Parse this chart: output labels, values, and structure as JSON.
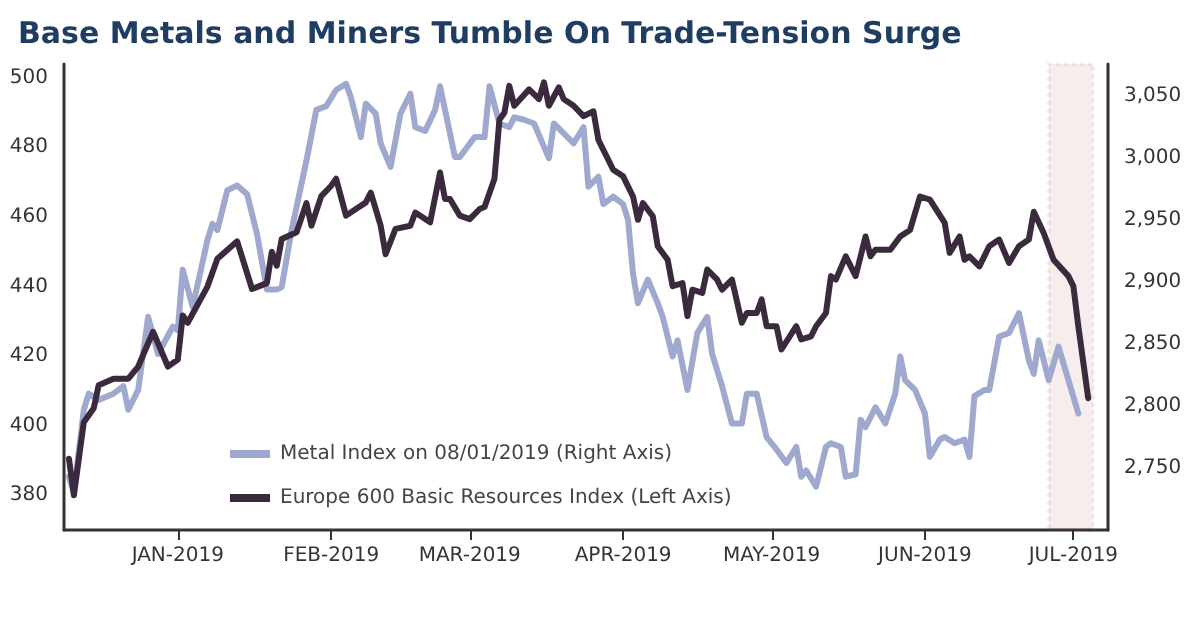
{
  "chart_data": {
    "type": "line",
    "title": "Base Metals and Miners Tumble On Trade-Tension Surge",
    "xlim": [
      "2018-12-09",
      "2019-07-08"
    ],
    "xticks": [
      {
        "value": "2019-01-01",
        "label": "JAN-2019"
      },
      {
        "value": "2019-02-01",
        "label": "FEB-2019"
      },
      {
        "value": "2019-03-01",
        "label": "MAR-2019"
      },
      {
        "value": "2019-04-01",
        "label": "APR-2019"
      },
      {
        "value": "2019-05-01",
        "label": "MAY-2019"
      },
      {
        "value": "2019-06-01",
        "label": "JUN-2019"
      },
      {
        "value": "2019-07-01",
        "label": "JUL-2019"
      }
    ],
    "ylim": [
      370,
      504
    ],
    "yticks": [
      380,
      400,
      420,
      440,
      460,
      480,
      500
    ],
    "y2lim": [
      2700,
      3076
    ],
    "y2ticks": [
      {
        "value": 2750,
        "label": "2,750"
      },
      {
        "value": 2800,
        "label": "2,800"
      },
      {
        "value": 2850,
        "label": "2,850"
      },
      {
        "value": 2900,
        "label": "2,900"
      },
      {
        "value": 2950,
        "label": "2,950"
      },
      {
        "value": 3000,
        "label": "3,000"
      },
      {
        "value": 3050,
        "label": "3,050"
      }
    ],
    "grid": false,
    "legend": "bottom",
    "bands": [
      {
        "axis": "x",
        "from": "2019-06-26",
        "to": "2019-07-05",
        "color": "#8b1a1a"
      }
    ],
    "series": [
      {
        "name": "Metal Index on 08/01/2019 (Right Axis)",
        "color": "#9fa8cf",
        "axis": "y2",
        "x": [
          "2018-12-10",
          "2018-12-11",
          "2018-12-13",
          "2018-12-14",
          "2018-12-16",
          "2018-12-19",
          "2018-12-21",
          "2018-12-22",
          "2018-12-24",
          "2018-12-26",
          "2018-12-28",
          "2018-12-31",
          "2019-01-01",
          "2019-01-02",
          "2019-01-04",
          "2019-01-07",
          "2019-01-08",
          "2019-01-09",
          "2019-01-11",
          "2019-01-13",
          "2019-01-15",
          "2019-01-17",
          "2019-01-19",
          "2019-01-21",
          "2019-01-22",
          "2019-01-24",
          "2019-01-27",
          "2019-01-29",
          "2019-01-31",
          "2019-02-02",
          "2019-02-04",
          "2019-02-05",
          "2019-02-07",
          "2019-02-08",
          "2019-02-10",
          "2019-02-11",
          "2019-02-13",
          "2019-02-15",
          "2019-02-17",
          "2019-02-18",
          "2019-02-20",
          "2019-02-22",
          "2019-02-23",
          "2019-02-26",
          "2019-02-27",
          "2019-03-02",
          "2019-03-04",
          "2019-03-05",
          "2019-03-07",
          "2019-03-09",
          "2019-03-10",
          "2019-03-12",
          "2019-03-14",
          "2019-03-17",
          "2019-03-18",
          "2019-03-20",
          "2019-03-22",
          "2019-03-24",
          "2019-03-25",
          "2019-03-27",
          "2019-03-28",
          "2019-03-30",
          "2019-04-01",
          "2019-04-02",
          "2019-04-03",
          "2019-04-04",
          "2019-04-06",
          "2019-04-08",
          "2019-04-09",
          "2019-04-11",
          "2019-04-12",
          "2019-04-14",
          "2019-04-16",
          "2019-04-18",
          "2019-04-19",
          "2019-04-21",
          "2019-04-23",
          "2019-04-25",
          "2019-04-26",
          "2019-04-28",
          "2019-04-30",
          "2019-05-02",
          "2019-05-04",
          "2019-05-06",
          "2019-05-07",
          "2019-05-08",
          "2019-05-10",
          "2019-05-12",
          "2019-05-13",
          "2019-05-15",
          "2019-05-16",
          "2019-05-18",
          "2019-05-19",
          "2019-05-20",
          "2019-05-22",
          "2019-05-24",
          "2019-05-26",
          "2019-05-27",
          "2019-05-28",
          "2019-05-30",
          "2019-06-01",
          "2019-06-02",
          "2019-06-04",
          "2019-06-05",
          "2019-06-07",
          "2019-06-09",
          "2019-06-10",
          "2019-06-11",
          "2019-06-13",
          "2019-06-14",
          "2019-06-16",
          "2019-06-18",
          "2019-06-20",
          "2019-06-22",
          "2019-06-23",
          "2019-06-24",
          "2019-06-26",
          "2019-06-28",
          "2019-06-30",
          "2019-07-02"
        ],
        "values": [
          2743,
          2730,
          2797,
          2810,
          2805,
          2810,
          2816,
          2797,
          2813,
          2872,
          2842,
          2864,
          2861,
          2910,
          2880,
          2934,
          2947,
          2942,
          2974,
          2978,
          2971,
          2939,
          2894,
          2894,
          2896,
          2942,
          2998,
          3039,
          3042,
          3055,
          3060,
          3049,
          3017,
          3044,
          3036,
          3012,
          2993,
          3036,
          3052,
          3025,
          3022,
          3039,
          3058,
          3001,
          3001,
          3017,
          3017,
          3058,
          3028,
          3025,
          3033,
          3031,
          3028,
          3000,
          3028,
          3020,
          3012,
          3025,
          2977,
          2985,
          2963,
          2969,
          2963,
          2950,
          2907,
          2883,
          2902,
          2883,
          2872,
          2840,
          2853,
          2813,
          2859,
          2872,
          2842,
          2816,
          2786,
          2786,
          2810,
          2810,
          2775,
          2765,
          2754,
          2767,
          2743,
          2748,
          2735,
          2767,
          2770,
          2767,
          2743,
          2745,
          2789,
          2783,
          2799,
          2786,
          2810,
          2840,
          2821,
          2813,
          2794,
          2759,
          2773,
          2775,
          2770,
          2773,
          2759,
          2808,
          2813,
          2813,
          2856,
          2859,
          2875,
          2837,
          2826,
          2853,
          2821,
          2848,
          2821,
          2794
        ]
      },
      {
        "name": "Europe 600 Basic Resources Index (Left Axis)",
        "color": "#3b2a3d",
        "x": [
          "2018-12-10",
          "2018-12-11",
          "2018-12-13",
          "2018-12-15",
          "2018-12-16",
          "2018-12-19",
          "2018-12-22",
          "2018-12-24",
          "2018-12-27",
          "2018-12-30",
          "2019-01-01",
          "2019-01-02",
          "2019-01-03",
          "2019-01-07",
          "2019-01-09",
          "2019-01-13",
          "2019-01-16",
          "2019-01-19",
          "2019-01-20",
          "2019-01-21",
          "2019-01-22",
          "2019-01-25",
          "2019-01-27",
          "2019-01-28",
          "2019-01-30",
          "2019-02-01",
          "2019-02-02",
          "2019-02-04",
          "2019-02-06",
          "2019-02-08",
          "2019-02-09",
          "2019-02-11",
          "2019-02-12",
          "2019-02-14",
          "2019-02-17",
          "2019-02-18",
          "2019-02-21",
          "2019-02-23",
          "2019-02-24",
          "2019-02-25",
          "2019-02-27",
          "2019-03-01",
          "2019-03-03",
          "2019-03-04",
          "2019-03-06",
          "2019-03-07",
          "2019-03-08",
          "2019-03-09",
          "2019-03-10",
          "2019-03-13",
          "2019-03-15",
          "2019-03-16",
          "2019-03-17",
          "2019-03-19",
          "2019-03-20",
          "2019-03-22",
          "2019-03-24",
          "2019-03-26",
          "2019-03-27",
          "2019-03-30",
          "2019-04-01",
          "2019-04-03",
          "2019-04-04",
          "2019-04-05",
          "2019-04-07",
          "2019-04-08",
          "2019-04-10",
          "2019-04-11",
          "2019-04-13",
          "2019-04-14",
          "2019-04-15",
          "2019-04-17",
          "2019-04-18",
          "2019-04-20",
          "2019-04-21",
          "2019-04-23",
          "2019-04-25",
          "2019-04-26",
          "2019-04-28",
          "2019-04-29",
          "2019-04-30",
          "2019-05-02",
          "2019-05-03",
          "2019-05-06",
          "2019-05-07",
          "2019-05-09",
          "2019-05-10",
          "2019-05-12",
          "2019-05-13",
          "2019-05-14",
          "2019-05-16",
          "2019-05-18",
          "2019-05-20",
          "2019-05-21",
          "2019-05-22",
          "2019-05-25",
          "2019-05-27",
          "2019-05-29",
          "2019-05-31",
          "2019-06-02",
          "2019-06-05",
          "2019-06-06",
          "2019-06-08",
          "2019-06-09",
          "2019-06-10",
          "2019-06-12",
          "2019-06-14",
          "2019-06-16",
          "2019-06-18",
          "2019-06-20",
          "2019-06-22",
          "2019-06-23",
          "2019-06-25",
          "2019-06-27",
          "2019-06-30",
          "2019-07-01",
          "2019-07-02",
          "2019-07-04"
        ],
        "values": [
          390.5,
          380,
          401,
          405,
          411.6,
          413.5,
          413.5,
          417,
          427,
          417,
          419,
          431.7,
          429.6,
          440,
          448,
          453,
          439.3,
          441,
          450,
          446,
          453.7,
          455.6,
          464,
          457.5,
          466,
          469,
          471,
          460.4,
          462.3,
          464.2,
          467,
          457.5,
          449.3,
          456.6,
          457.5,
          461.3,
          458.5,
          472.8,
          465.2,
          465.2,
          460.4,
          459.4,
          462.3,
          462.9,
          471,
          488,
          490,
          497.7,
          492,
          496.7,
          493.9,
          498.7,
          492,
          497.3,
          493.9,
          492,
          489,
          490.4,
          482.2,
          473.6,
          471.7,
          465.9,
          459.2,
          464,
          460.2,
          451.6,
          447.7,
          440.1,
          441,
          431.5,
          439.1,
          438.2,
          444.9,
          442,
          439.1,
          442,
          429.6,
          432.4,
          432.4,
          436.3,
          428.6,
          428.6,
          421.9,
          428.6,
          424.8,
          425.7,
          428.6,
          432.4,
          443,
          442,
          448.7,
          443,
          454.4,
          448.7,
          450.6,
          450.6,
          454.4,
          456.3,
          465.9,
          465,
          458.3,
          449.7,
          454.4,
          447.7,
          448.7,
          445.8,
          451.6,
          453.5,
          446.8,
          451.6,
          453.5,
          461.5,
          455.4,
          447.7,
          443,
          440.1,
          428.6,
          407.9
        ]
      }
    ]
  }
}
